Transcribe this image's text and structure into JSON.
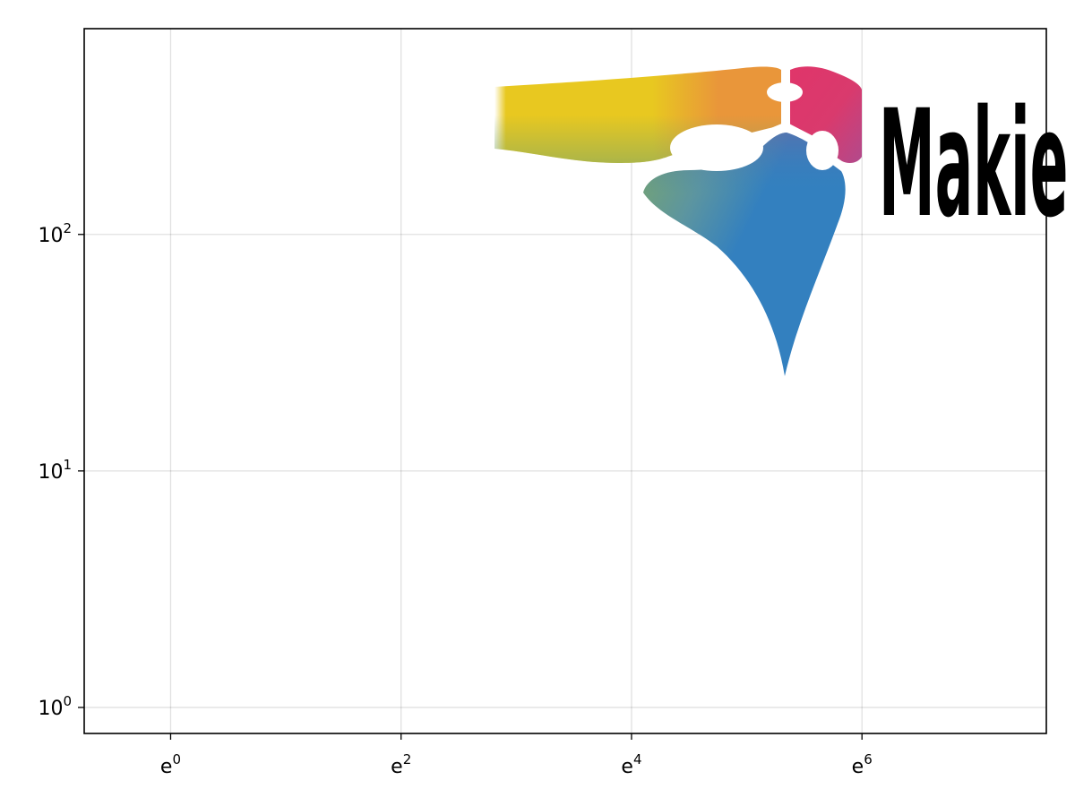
{
  "chart_data": {
    "type": "image",
    "title": "",
    "xlabel": "",
    "ylabel": "",
    "x_scale": "natural-log",
    "y_scale": "log10",
    "xlim": [
      -0.75,
      7.6
    ],
    "ylim": [
      -0.11,
      2.87
    ],
    "x_ticks": [
      {
        "base": "e",
        "exp": "0",
        "value": 0
      },
      {
        "base": "e",
        "exp": "2",
        "value": 2
      },
      {
        "base": "e",
        "exp": "4",
        "value": 4
      },
      {
        "base": "e",
        "exp": "6",
        "value": 6
      }
    ],
    "y_ticks": [
      {
        "base": "10",
        "exp": "0",
        "value": 0
      },
      {
        "base": "10",
        "exp": "1",
        "value": 1
      },
      {
        "base": "10",
        "exp": "2",
        "value": 2
      }
    ],
    "grid": true,
    "legend": "none",
    "image": {
      "description_text": "Makie",
      "colors": {
        "yellow": "#e8c820",
        "orange": "#e9963a",
        "pink": "#e0356a",
        "purple": "#b14a8c",
        "blue": "#3380bf",
        "green": "#7aa66a"
      }
    }
  }
}
